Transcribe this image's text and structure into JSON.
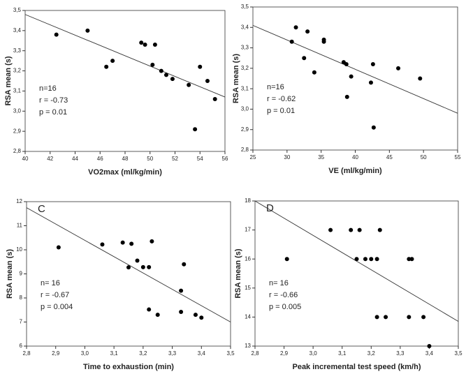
{
  "chart_data": [
    {
      "type": "scatter",
      "color": "#000000",
      "x": [
        42.5,
        45,
        46.5,
        47,
        49.3,
        49.6,
        50.2,
        50.4,
        50.9,
        51.3,
        51.8,
        53.1,
        53.6,
        54,
        54.6,
        55.2
      ],
      "y": [
        3.38,
        3.4,
        3.22,
        3.25,
        3.34,
        3.33,
        3.23,
        3.33,
        3.2,
        3.18,
        3.16,
        3.13,
        2.91,
        3.22,
        3.15,
        3.06
      ],
      "trendline": {
        "x": [
          40,
          56
        ],
        "y": [
          3.48,
          3.07
        ]
      },
      "xlim": [
        40,
        56
      ],
      "xticks": [
        40,
        42,
        44,
        46,
        48,
        50,
        52,
        54,
        56
      ],
      "ylim": [
        2.8,
        3.5
      ],
      "yticks": [
        {
          "value": 2.8,
          "label": "2,8"
        },
        {
          "value": 2.9,
          "label": "2,9"
        },
        {
          "value": 3.0,
          "label": "3,0"
        },
        {
          "value": 3.1,
          "label": "3,1"
        },
        {
          "value": 3.2,
          "label": "3,2"
        },
        {
          "value": 3.3,
          "label": "3,3"
        },
        {
          "value": 3.4,
          "label": "3,4"
        },
        {
          "value": 3.5,
          "label": "3,5"
        }
      ],
      "xlabel": "VO2max (ml/kg/min)",
      "ylabel": "RSA mean (s)",
      "annotations": [
        "n=16",
        "r = -0.73",
        "p = 0.01"
      ]
    },
    {
      "type": "scatter",
      "color": "#000000",
      "x": [
        30.7,
        31.3,
        32.5,
        33,
        34,
        35.4,
        35.4,
        38.3,
        38.7,
        38.8,
        39.4,
        42.3,
        42.6,
        42.7,
        46.3,
        49.5
      ],
      "y": [
        3.33,
        3.4,
        3.25,
        3.38,
        3.18,
        3.34,
        3.33,
        3.23,
        3.22,
        3.06,
        3.16,
        3.13,
        3.22,
        2.91,
        3.2,
        3.15
      ],
      "trendline": {
        "x": [
          25,
          55
        ],
        "y": [
          3.41,
          2.98
        ]
      },
      "xlim": [
        25,
        55
      ],
      "xticks": [
        25,
        30,
        35,
        40,
        45,
        50,
        55
      ],
      "ylim": [
        2.8,
        3.5
      ],
      "yticks": [
        {
          "value": 2.8,
          "label": "2,8"
        },
        {
          "value": 2.9,
          "label": "2,9"
        },
        {
          "value": 3.0,
          "label": "3,0"
        },
        {
          "value": 3.1,
          "label": "3,1"
        },
        {
          "value": 3.2,
          "label": "3,2"
        },
        {
          "value": 3.3,
          "label": "3,3"
        },
        {
          "value": 3.4,
          "label": "3,4"
        },
        {
          "value": 3.5,
          "label": "3,5"
        }
      ],
      "xlabel": "VE (ml/kg/min)",
      "ylabel": "RSA mean (s)",
      "annotations": [
        "n=16",
        "r = -0.62",
        "p = 0.01"
      ]
    },
    {
      "type": "scatter",
      "color": "#000000",
      "title": "C",
      "x": [
        2.91,
        3.06,
        3.13,
        3.15,
        3.16,
        3.18,
        3.2,
        3.22,
        3.22,
        3.23,
        3.25,
        3.33,
        3.33,
        3.34,
        3.38,
        3.4
      ],
      "y": [
        10.1,
        10.22,
        10.3,
        9.27,
        10.25,
        9.55,
        9.28,
        9.28,
        7.52,
        10.35,
        7.3,
        8.3,
        7.42,
        9.4,
        7.3,
        7.18
      ],
      "trendline": {
        "x": [
          2.8,
          3.5
        ],
        "y": [
          11.75,
          7.0
        ]
      },
      "xlim": [
        2.8,
        3.5
      ],
      "xticks": [
        {
          "value": 2.8,
          "label": "2,8"
        },
        {
          "value": 2.9,
          "label": "2,9"
        },
        {
          "value": 3.0,
          "label": "3,0"
        },
        {
          "value": 3.1,
          "label": "3,1"
        },
        {
          "value": 3.2,
          "label": "3,2"
        },
        {
          "value": 3.3,
          "label": "3,3"
        },
        {
          "value": 3.4,
          "label": "3,4"
        },
        {
          "value": 3.5,
          "label": "3,5"
        }
      ],
      "ylim": [
        6,
        12
      ],
      "yticks": [
        6,
        7,
        8,
        9,
        10,
        11,
        12
      ],
      "xlabel": "Time to exhaustion (min)",
      "ylabel": "RSA mean (s)",
      "annotations": [
        "n= 16",
        "r = -0.67",
        "p = 0.004"
      ]
    },
    {
      "type": "scatter",
      "color": "#000000",
      "title": "D",
      "x": [
        2.91,
        3.06,
        3.13,
        3.15,
        3.16,
        3.18,
        3.2,
        3.22,
        3.22,
        3.23,
        3.25,
        3.33,
        3.33,
        3.34,
        3.38,
        3.4
      ],
      "y": [
        16,
        17,
        17,
        16,
        17,
        16,
        16,
        16,
        14,
        17,
        14,
        16,
        14,
        16,
        14,
        13
      ],
      "trendline": {
        "x": [
          2.8,
          3.5
        ],
        "y": [
          18.0,
          13.85
        ]
      },
      "xlim": [
        2.8,
        3.5
      ],
      "xticks": [
        {
          "value": 2.8,
          "label": "2,8"
        },
        {
          "value": 2.9,
          "label": "2,9"
        },
        {
          "value": 3.0,
          "label": "3,0"
        },
        {
          "value": 3.1,
          "label": "3,1"
        },
        {
          "value": 3.2,
          "label": "3,2"
        },
        {
          "value": 3.3,
          "label": "3,3"
        },
        {
          "value": 3.4,
          "label": "3,4"
        },
        {
          "value": 3.5,
          "label": "3,5"
        }
      ],
      "ylim": [
        13,
        18
      ],
      "yticks": [
        13,
        14,
        15,
        16,
        17,
        18
      ],
      "xlabel": "Peak incremental test speed (km/h)",
      "ylabel": "RSA mean (s)",
      "annotations": [
        "n= 16",
        "r = -0.66",
        "p = 0.005"
      ]
    }
  ]
}
